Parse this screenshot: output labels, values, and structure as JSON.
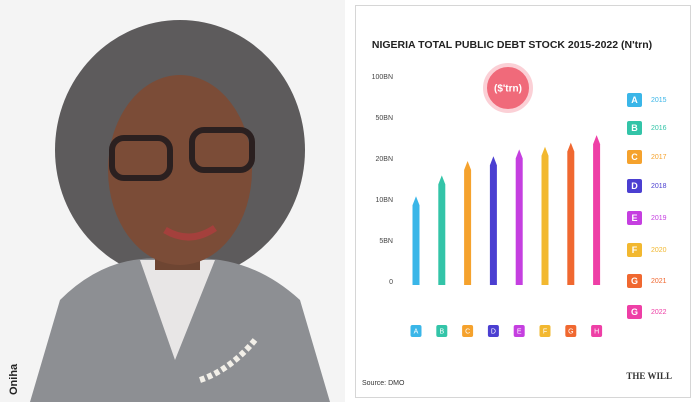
{
  "photo": {
    "caption": "Oniha"
  },
  "chart_data": {
    "type": "bar",
    "title": "NIGERIA TOTAL PUBLIC DEBT STOCK 2015-2022 (N'trn)",
    "badge": "($'trn)",
    "categories": [
      "A",
      "B",
      "C",
      "D",
      "E",
      "F",
      "G",
      "H"
    ],
    "values": [
      10.9,
      16,
      19.5,
      22,
      27,
      29,
      32,
      37.5
    ],
    "colors": [
      "#3ab6e8",
      "#33c4a8",
      "#f5a22d",
      "#4b3fd1",
      "#c53fe0",
      "#f2b830",
      "#f06830",
      "#ee3fa6"
    ],
    "ylim": [
      0,
      100
    ],
    "yticks": [
      0,
      {
        "value": 5,
        "label": "5BN"
      },
      {
        "value": 10,
        "label": "10BN"
      },
      {
        "value": 20,
        "label": "20BN"
      },
      {
        "value": 50,
        "label": "50BN"
      },
      {
        "value": 100,
        "label": "100BN"
      }
    ],
    "legend": [
      {
        "label": "A",
        "year": "2015",
        "color": "#3ab6e8"
      },
      {
        "label": "B",
        "year": "2016",
        "color": "#33c4a8"
      },
      {
        "label": "C",
        "year": "2017",
        "color": "#f5a22d"
      },
      {
        "label": "D",
        "year": "2018",
        "color": "#4b3fd1"
      },
      {
        "label": "E",
        "year": "2019",
        "color": "#c53fe0"
      },
      {
        "label": "F",
        "year": "2020",
        "color": "#f2b830"
      },
      {
        "label": "G",
        "year": "2021",
        "color": "#f06830"
      },
      {
        "label": "G",
        "year": "2022",
        "color": "#ee3fa6"
      }
    ],
    "source": "Source: DMO",
    "logo": "THE WILL"
  }
}
